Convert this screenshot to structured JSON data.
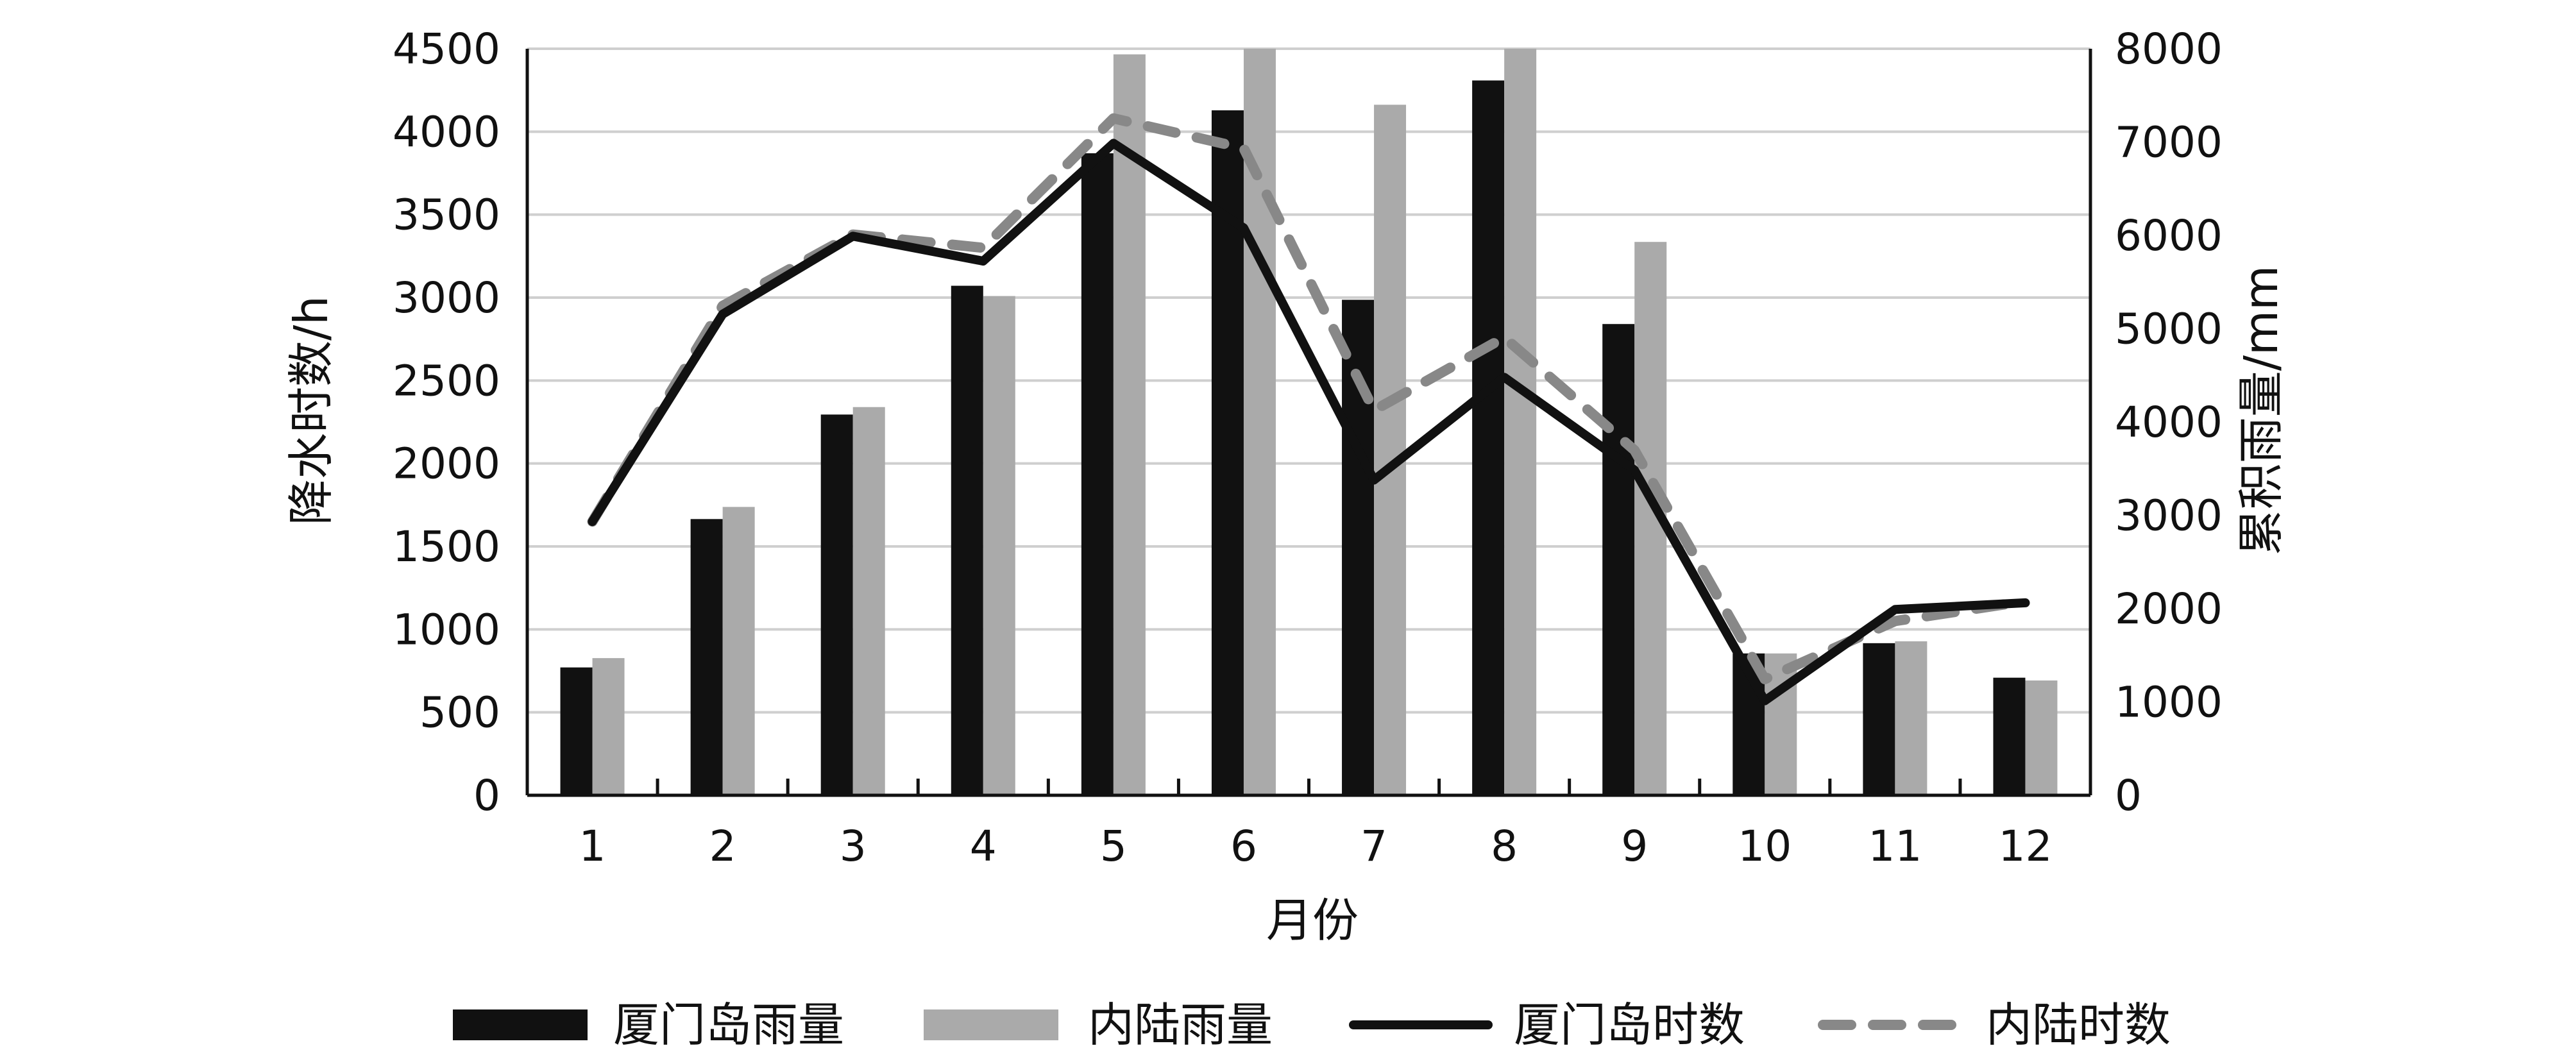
{
  "chart_data": {
    "type": "bar",
    "xlabel": "月份",
    "ylabel_left": "降水时数/h",
    "ylabel_right": "累积雨量/mm",
    "categories": [
      "1",
      "2",
      "3",
      "4",
      "5",
      "6",
      "7",
      "8",
      "9",
      "10",
      "11",
      "12"
    ],
    "ylim_left": [
      0,
      4500
    ],
    "yticks_left": [
      0,
      500,
      1000,
      1500,
      2000,
      2500,
      3000,
      3500,
      4000,
      4500
    ],
    "ylim_right": [
      0,
      8000
    ],
    "yticks_right": [
      0,
      1000,
      2000,
      3000,
      4000,
      5000,
      6000,
      7000,
      8000
    ],
    "grid": true,
    "legend_position": "bottom",
    "series": [
      {
        "name": "厦门岛雨量",
        "kind": "bar",
        "axis": "right",
        "color": "#111111",
        "values": [
          1370,
          2960,
          4080,
          5460,
          6880,
          7340,
          5310,
          7660,
          5050,
          1520,
          1630,
          1260
        ]
      },
      {
        "name": "内陆雨量",
        "kind": "bar",
        "axis": "right",
        "color": "#aaaaaa",
        "values": [
          1470,
          3090,
          4160,
          5350,
          7940,
          8000,
          7400,
          8000,
          5930,
          1520,
          1650,
          1230
        ]
      },
      {
        "name": "厦门岛时数",
        "kind": "line",
        "axis": "left",
        "color": "#111111",
        "dashed": false,
        "values": [
          1650,
          2900,
          3370,
          3220,
          3930,
          3420,
          1900,
          2520,
          1960,
          570,
          1120,
          1160
        ]
      },
      {
        "name": "内陆时数",
        "kind": "line",
        "axis": "left",
        "color": "#888888",
        "dashed": true,
        "values": [
          1650,
          2950,
          3380,
          3300,
          4080,
          3900,
          2320,
          2760,
          2080,
          700,
          1050,
          1170
        ]
      }
    ]
  }
}
